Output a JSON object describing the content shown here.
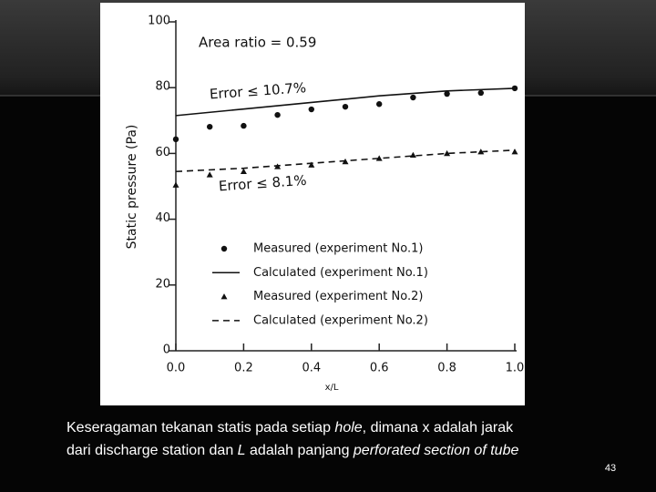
{
  "chart_data": {
    "type": "line",
    "y_label": "Static pressure (Pa)",
    "x_label": "x/L",
    "annotations": [
      "Area ratio = 0.59",
      "Error ≤ 10.7%",
      "Error ≤ 8.1%"
    ],
    "series": [
      {
        "name": "Measured (experiment No.1)",
        "marker": "circle",
        "line": "none",
        "color": "#111111",
        "x": [
          0,
          0.1,
          0.2,
          0.3,
          0.4,
          0.5,
          0.6,
          0.7,
          0.8,
          0.9,
          1.0
        ],
        "values": [
          64.3,
          68.1,
          68.4,
          71.7,
          73.4,
          74.2,
          75,
          77,
          78.1,
          78.4,
          79.8
        ]
      },
      {
        "name": "Calculated (experiment No.1)",
        "marker": "none",
        "line": "solid",
        "color": "#111111",
        "x": [
          0,
          0.2,
          0.4,
          0.6,
          0.8,
          1.0
        ],
        "values": [
          71.5,
          73.5,
          75.5,
          77.5,
          79,
          79.8
        ]
      },
      {
        "name": "Measured (experiment No.2)",
        "marker": "triangle",
        "line": "none",
        "color": "#111111",
        "x": [
          0,
          0.1,
          0.2,
          0.3,
          0.4,
          0.5,
          0.6,
          0.7,
          0.8,
          0.9,
          1.0
        ],
        "values": [
          50.4,
          53.5,
          54.5,
          56,
          56.5,
          57.5,
          58.5,
          59.5,
          60,
          60.5,
          60.5
        ]
      },
      {
        "name": "Calculated (experiment No.2)",
        "marker": "none",
        "line": "dashed",
        "color": "#111111",
        "x": [
          0,
          0.2,
          0.4,
          0.6,
          0.8,
          1.0
        ],
        "values": [
          54.5,
          55.5,
          57,
          58.5,
          60,
          61
        ]
      }
    ],
    "xlim": [
      0,
      1.0
    ],
    "xticks": [
      {
        "value": 0,
        "label": "0.0"
      },
      0.2,
      0.4,
      0.6,
      0.8,
      {
        "value": 1.0,
        "label": "1.0"
      }
    ],
    "ylim": [
      0,
      100
    ],
    "yticks": [
      0,
      20,
      40,
      60,
      80,
      100
    ],
    "grid": false
  },
  "caption": [
    [
      {
        "text": "Keseragaman tekanan statis pada setiap ",
        "italic": false
      },
      {
        "text": "hole",
        "italic": true
      },
      {
        "text": ", dimana x adalah jarak",
        "italic": false
      }
    ],
    [
      {
        "text": "dari discharge station dan ",
        "italic": false
      },
      {
        "text": "L",
        "italic": true
      },
      {
        "text": " adalah panjang ",
        "italic": false
      },
      {
        "text": "perforated section of tube",
        "italic": true
      }
    ]
  ],
  "page_number": "43"
}
